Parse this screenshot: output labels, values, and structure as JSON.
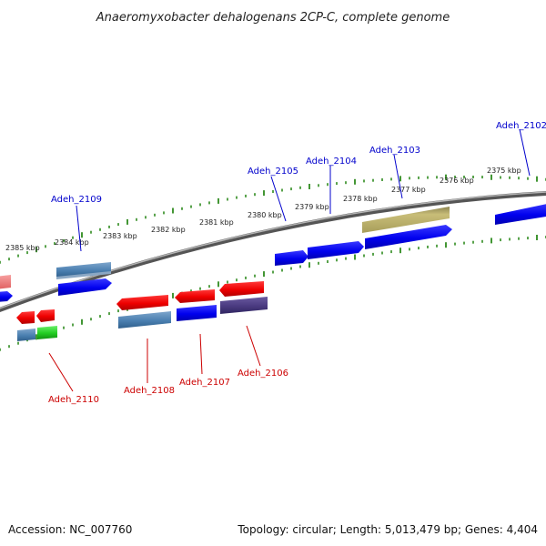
{
  "title": "Anaeromyxobacter dehalogenans 2CP-C, complete genome",
  "footer": {
    "accession": "Accession: NC_007760",
    "summary": "Topology: circular; Length: 5,013,479 bp; Genes: 4,404"
  },
  "colors": {
    "backbone": "#7a7a7a",
    "tick": "#2e8b1e",
    "label_forward": "#0000cc",
    "label_reverse": "#cc0000"
  },
  "ticks": [
    {
      "label": "2385 kbp"
    },
    {
      "label": "2384 kbp"
    },
    {
      "label": "2383 kbp"
    },
    {
      "label": "2382 kbp"
    },
    {
      "label": "2381 kbp"
    },
    {
      "label": "2380 kbp"
    },
    {
      "label": "2379 kbp"
    },
    {
      "label": "2378 kbp"
    },
    {
      "label": "2377 kbp"
    },
    {
      "label": "2376 kbp"
    },
    {
      "label": "2375 kbp"
    }
  ],
  "gene_labels": [
    {
      "text": "Adeh_2109",
      "strand": "forward"
    },
    {
      "text": "Adeh_2105",
      "strand": "forward"
    },
    {
      "text": "Adeh_2104",
      "strand": "forward"
    },
    {
      "text": "Adeh_2103",
      "strand": "forward"
    },
    {
      "text": "Adeh_2102",
      "strand": "forward"
    },
    {
      "text": "Adeh_2110",
      "strand": "reverse"
    },
    {
      "text": "Adeh_2108",
      "strand": "reverse"
    },
    {
      "text": "Adeh_2107",
      "strand": "reverse"
    },
    {
      "text": "Adeh_2106",
      "strand": "reverse"
    }
  ]
}
